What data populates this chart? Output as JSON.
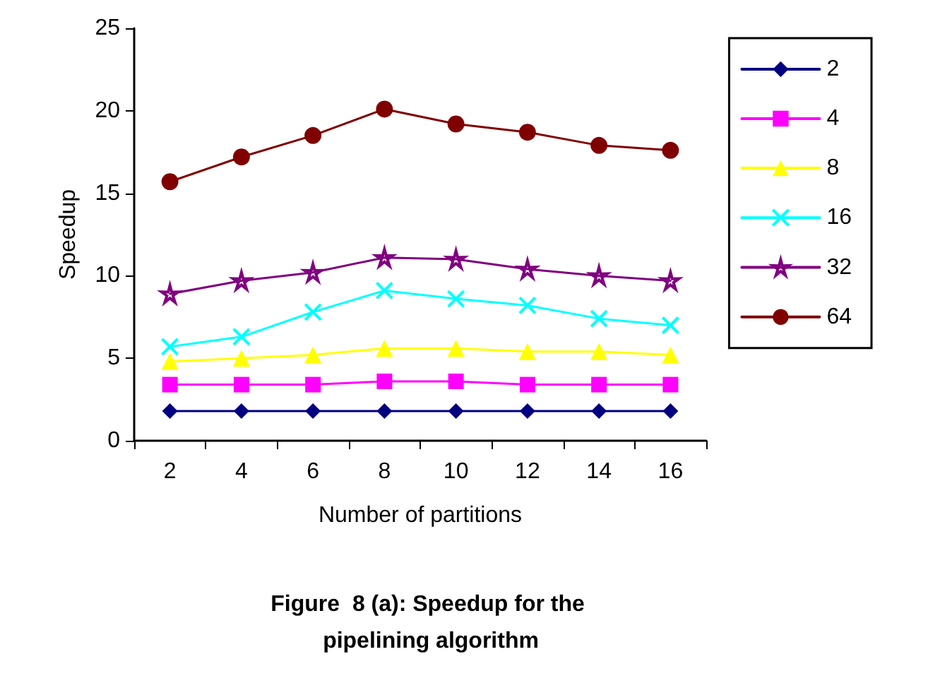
{
  "chart_data": {
    "type": "line",
    "title": "Figure  8 (a): Speedup for the pipelining algorithm",
    "xlabel": "Number of partitions",
    "ylabel": "Speedup",
    "categories": [
      "2",
      "4",
      "6",
      "8",
      "10",
      "12",
      "14",
      "16"
    ],
    "series": [
      {
        "name": "2",
        "color": "#000080",
        "marker": "diamond",
        "values": [
          1.8,
          1.8,
          1.8,
          1.8,
          1.8,
          1.8,
          1.8,
          1.8
        ]
      },
      {
        "name": "4",
        "color": "#ff00ff",
        "marker": "square",
        "values": [
          3.4,
          3.4,
          3.4,
          3.6,
          3.6,
          3.4,
          3.4,
          3.4
        ]
      },
      {
        "name": "8",
        "color": "#ffff00",
        "marker": "triangle",
        "values": [
          4.8,
          5.0,
          5.2,
          5.6,
          5.6,
          5.4,
          5.4,
          5.2
        ]
      },
      {
        "name": "16",
        "color": "#00ffff",
        "marker": "cross",
        "values": [
          5.7,
          6.3,
          7.8,
          9.1,
          8.6,
          8.2,
          7.4,
          7.0
        ]
      },
      {
        "name": "32",
        "color": "#800080",
        "marker": "star",
        "values": [
          8.9,
          9.7,
          10.2,
          11.1,
          11.0,
          10.4,
          10.0,
          9.7
        ]
      },
      {
        "name": "64",
        "color": "#800000",
        "marker": "circle",
        "values": [
          15.7,
          17.2,
          18.5,
          20.1,
          19.2,
          18.7,
          17.9,
          17.6
        ]
      }
    ],
    "ylim": [
      0,
      25
    ],
    "yticks": [
      0,
      5,
      10,
      15,
      20,
      25
    ],
    "grid": false,
    "legend": "right",
    "line_style": "solid"
  }
}
